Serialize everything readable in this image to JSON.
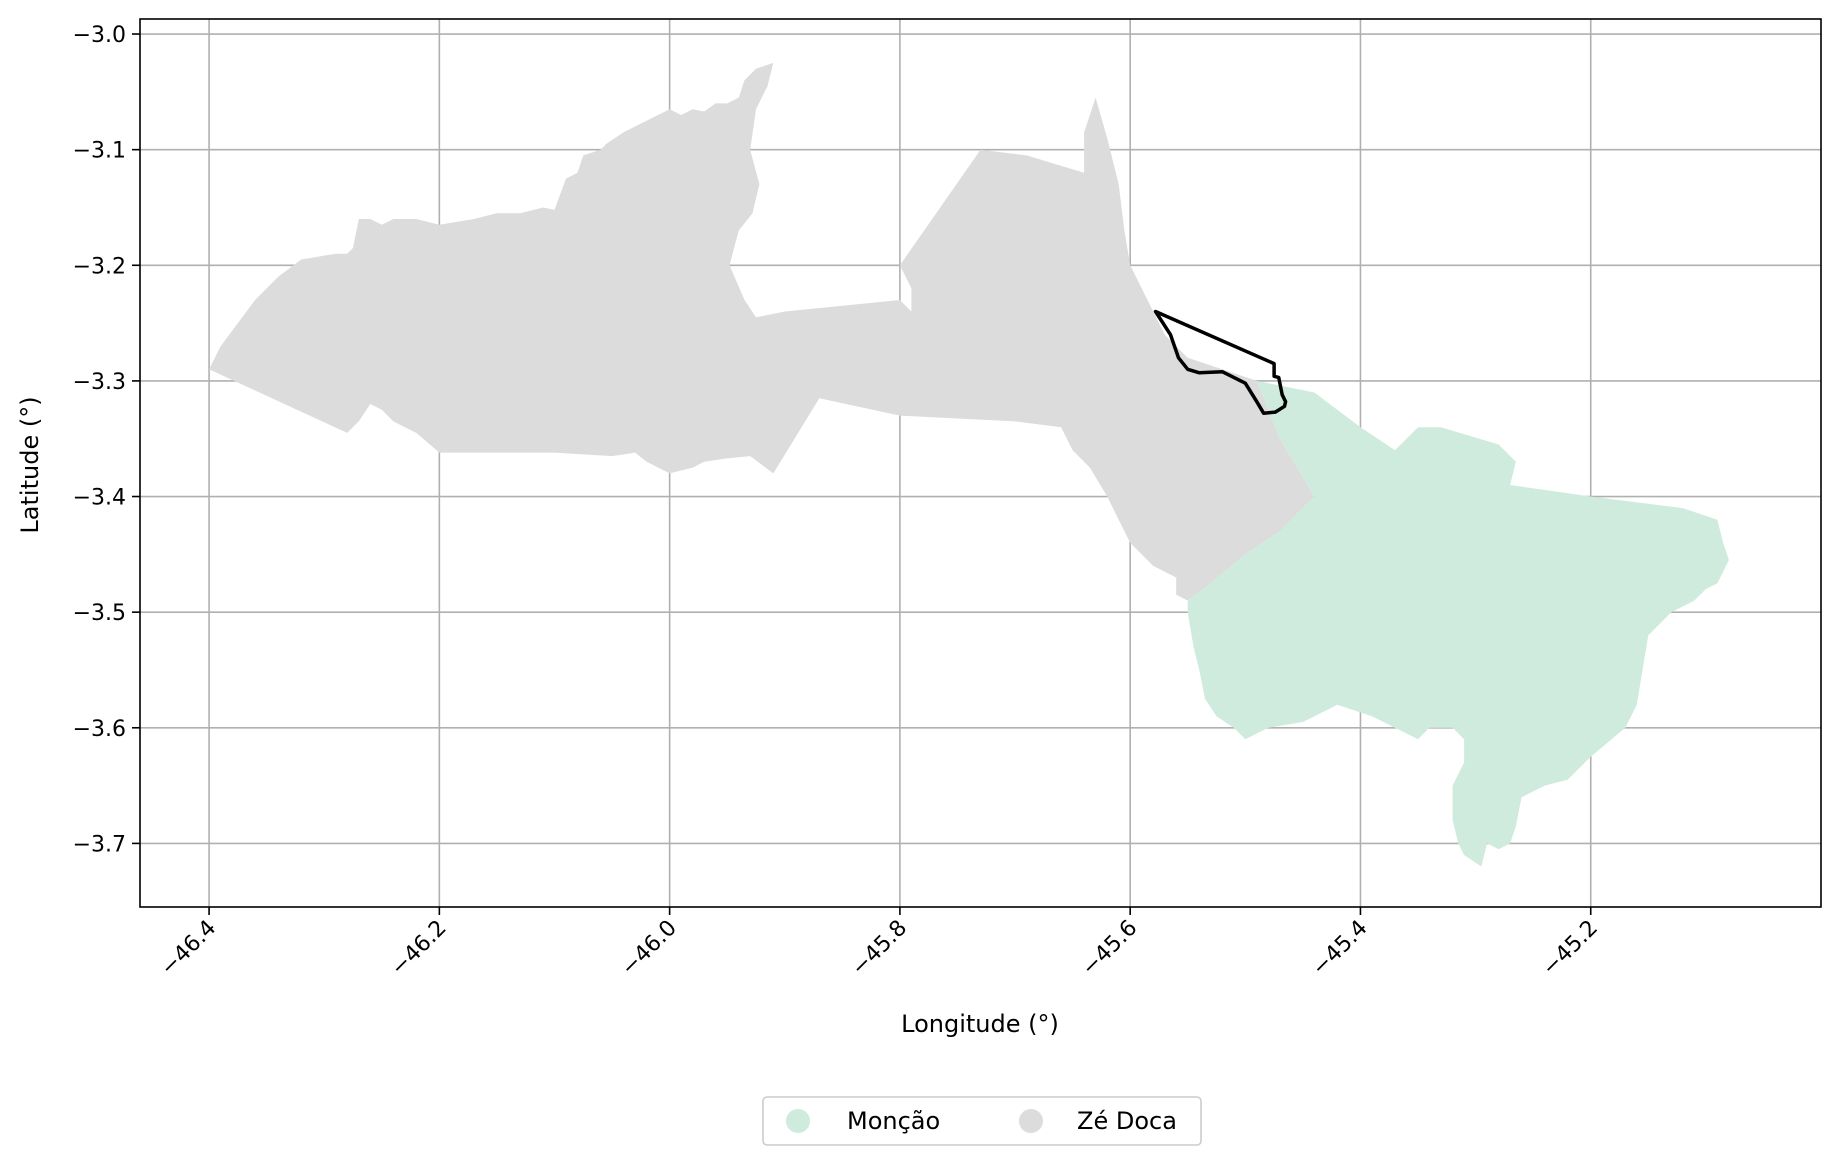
{
  "map": {
    "xlabel": "Longitude (°)",
    "ylabel": "Latitude (°)",
    "xlim": [
      -46.46,
      -45.0
    ],
    "ylim": [
      -3.755,
      -2.987
    ],
    "x_ticks": [
      {
        "value": -46.4,
        "label": "−46.4"
      },
      {
        "value": -46.2,
        "label": "−46.2"
      },
      {
        "value": -46.0,
        "label": "−46.0"
      },
      {
        "value": -45.8,
        "label": "−45.8"
      },
      {
        "value": -45.6,
        "label": "−45.6"
      },
      {
        "value": -45.4,
        "label": "−45.4"
      },
      {
        "value": -45.2,
        "label": "−45.2"
      }
    ],
    "y_ticks": [
      {
        "value": -3.0,
        "label": "−3.0"
      },
      {
        "value": -3.1,
        "label": "−3.1"
      },
      {
        "value": -3.2,
        "label": "−3.2"
      },
      {
        "value": -3.3,
        "label": "−3.3"
      },
      {
        "value": -3.4,
        "label": "−3.4"
      },
      {
        "value": -3.5,
        "label": "−3.5"
      },
      {
        "value": -3.6,
        "label": "−3.6"
      },
      {
        "value": -3.7,
        "label": "−3.7"
      }
    ],
    "grid": true,
    "legend_position": "bottom-center",
    "regions": [
      {
        "name": "Zé Doca",
        "color": "#dcdcdc",
        "coords": [
          [
            -46.4,
            -3.29
          ],
          [
            -46.39,
            -3.27
          ],
          [
            -46.36,
            -3.23
          ],
          [
            -46.34,
            -3.21
          ],
          [
            -46.32,
            -3.195
          ],
          [
            -46.29,
            -3.19
          ],
          [
            -46.28,
            -3.19
          ],
          [
            -46.275,
            -3.185
          ],
          [
            -46.27,
            -3.16
          ],
          [
            -46.26,
            -3.16
          ],
          [
            -46.25,
            -3.165
          ],
          [
            -46.24,
            -3.16
          ],
          [
            -46.22,
            -3.16
          ],
          [
            -46.2,
            -3.165
          ],
          [
            -46.17,
            -3.16
          ],
          [
            -46.15,
            -3.155
          ],
          [
            -46.13,
            -3.155
          ],
          [
            -46.11,
            -3.15
          ],
          [
            -46.1,
            -3.152
          ],
          [
            -46.09,
            -3.125
          ],
          [
            -46.08,
            -3.12
          ],
          [
            -46.075,
            -3.105
          ],
          [
            -46.06,
            -3.1
          ],
          [
            -46.055,
            -3.095
          ],
          [
            -46.04,
            -3.085
          ],
          [
            -46.03,
            -3.08
          ],
          [
            -46.02,
            -3.075
          ],
          [
            -46.0,
            -3.065
          ],
          [
            -45.99,
            -3.07
          ],
          [
            -45.98,
            -3.065
          ],
          [
            -45.97,
            -3.067
          ],
          [
            -45.96,
            -3.06
          ],
          [
            -45.95,
            -3.06
          ],
          [
            -45.94,
            -3.055
          ],
          [
            -45.935,
            -3.04
          ],
          [
            -45.925,
            -3.03
          ],
          [
            -45.91,
            -3.025
          ],
          [
            -45.915,
            -3.045
          ],
          [
            -45.925,
            -3.065
          ],
          [
            -45.93,
            -3.1
          ],
          [
            -45.922,
            -3.13
          ],
          [
            -45.928,
            -3.155
          ],
          [
            -45.94,
            -3.17
          ],
          [
            -45.948,
            -3.2
          ],
          [
            -45.935,
            -3.23
          ],
          [
            -45.925,
            -3.245
          ],
          [
            -45.9,
            -3.24
          ],
          [
            -45.8,
            -3.23
          ],
          [
            -45.79,
            -3.24
          ],
          [
            -45.79,
            -3.22
          ],
          [
            -45.8,
            -3.2
          ],
          [
            -45.73,
            -3.1
          ],
          [
            -45.69,
            -3.105
          ],
          [
            -45.64,
            -3.12
          ],
          [
            -45.64,
            -3.085
          ],
          [
            -45.63,
            -3.055
          ],
          [
            -45.62,
            -3.09
          ],
          [
            -45.61,
            -3.13
          ],
          [
            -45.605,
            -3.17
          ],
          [
            -45.6,
            -3.2
          ],
          [
            -45.59,
            -3.22
          ],
          [
            -45.58,
            -3.24
          ],
          [
            -45.57,
            -3.26
          ],
          [
            -45.55,
            -3.28
          ],
          [
            -45.52,
            -3.29
          ],
          [
            -45.49,
            -3.3
          ],
          [
            -45.47,
            -3.35
          ],
          [
            -45.44,
            -3.4
          ],
          [
            -45.47,
            -3.43
          ],
          [
            -45.5,
            -3.45
          ],
          [
            -45.53,
            -3.475
          ],
          [
            -45.55,
            -3.49
          ],
          [
            -45.56,
            -3.485
          ],
          [
            -45.56,
            -3.47
          ],
          [
            -45.58,
            -3.46
          ],
          [
            -45.6,
            -3.44
          ],
          [
            -45.61,
            -3.42
          ],
          [
            -45.62,
            -3.4
          ],
          [
            -45.635,
            -3.375
          ],
          [
            -45.65,
            -3.36
          ],
          [
            -45.66,
            -3.34
          ],
          [
            -45.7,
            -3.335
          ],
          [
            -45.8,
            -3.33
          ],
          [
            -45.87,
            -3.315
          ],
          [
            -45.91,
            -3.38
          ],
          [
            -45.93,
            -3.365
          ],
          [
            -45.95,
            -3.367
          ],
          [
            -45.97,
            -3.37
          ],
          [
            -45.98,
            -3.375
          ],
          [
            -46.0,
            -3.38
          ],
          [
            -46.02,
            -3.37
          ],
          [
            -46.03,
            -3.362
          ],
          [
            -46.05,
            -3.365
          ],
          [
            -46.1,
            -3.362
          ],
          [
            -46.2,
            -3.362
          ],
          [
            -46.22,
            -3.345
          ],
          [
            -46.24,
            -3.335
          ],
          [
            -46.25,
            -3.325
          ],
          [
            -46.26,
            -3.32
          ],
          [
            -46.27,
            -3.335
          ],
          [
            -46.28,
            -3.345
          ]
        ]
      },
      {
        "name": "Monção",
        "color": "#cfebdd",
        "coords": [
          [
            -45.49,
            -3.3
          ],
          [
            -45.44,
            -3.31
          ],
          [
            -45.4,
            -3.34
          ],
          [
            -45.37,
            -3.36
          ],
          [
            -45.35,
            -3.34
          ],
          [
            -45.33,
            -3.34
          ],
          [
            -45.28,
            -3.355
          ],
          [
            -45.265,
            -3.37
          ],
          [
            -45.27,
            -3.39
          ],
          [
            -45.2,
            -3.4
          ],
          [
            -45.12,
            -3.41
          ],
          [
            -45.09,
            -3.42
          ],
          [
            -45.085,
            -3.44
          ],
          [
            -45.08,
            -3.455
          ],
          [
            -45.09,
            -3.475
          ],
          [
            -45.1,
            -3.48
          ],
          [
            -45.11,
            -3.49
          ],
          [
            -45.13,
            -3.5
          ],
          [
            -45.15,
            -3.52
          ],
          [
            -45.155,
            -3.55
          ],
          [
            -45.16,
            -3.58
          ],
          [
            -45.17,
            -3.6
          ],
          [
            -45.2,
            -3.625
          ],
          [
            -45.22,
            -3.645
          ],
          [
            -45.24,
            -3.65
          ],
          [
            -45.26,
            -3.66
          ],
          [
            -45.265,
            -3.685
          ],
          [
            -45.27,
            -3.7
          ],
          [
            -45.28,
            -3.705
          ],
          [
            -45.29,
            -3.7
          ],
          [
            -45.295,
            -3.72
          ],
          [
            -45.31,
            -3.71
          ],
          [
            -45.315,
            -3.7
          ],
          [
            -45.32,
            -3.68
          ],
          [
            -45.32,
            -3.65
          ],
          [
            -45.31,
            -3.63
          ],
          [
            -45.31,
            -3.61
          ],
          [
            -45.32,
            -3.6
          ],
          [
            -45.34,
            -3.6
          ],
          [
            -45.35,
            -3.61
          ],
          [
            -45.37,
            -3.6
          ],
          [
            -45.39,
            -3.59
          ],
          [
            -45.42,
            -3.58
          ],
          [
            -45.45,
            -3.595
          ],
          [
            -45.48,
            -3.6
          ],
          [
            -45.5,
            -3.61
          ],
          [
            -45.51,
            -3.6
          ],
          [
            -45.525,
            -3.59
          ],
          [
            -45.535,
            -3.575
          ],
          [
            -45.54,
            -3.55
          ],
          [
            -45.545,
            -3.53
          ],
          [
            -45.55,
            -3.5
          ],
          [
            -45.55,
            -3.49
          ],
          [
            -45.53,
            -3.475
          ],
          [
            -45.5,
            -3.45
          ],
          [
            -45.47,
            -3.43
          ],
          [
            -45.44,
            -3.4
          ],
          [
            -45.47,
            -3.35
          ]
        ]
      }
    ],
    "highlight": {
      "color": "#000000",
      "coords": [
        [
          -45.578,
          -3.24
        ],
        [
          -45.475,
          -3.285
        ],
        [
          -45.475,
          -3.296
        ],
        [
          -45.471,
          -3.297
        ],
        [
          -45.468,
          -3.312
        ],
        [
          -45.465,
          -3.318
        ],
        [
          -45.466,
          -3.322
        ],
        [
          -45.474,
          -3.327
        ],
        [
          -45.484,
          -3.328
        ],
        [
          -45.49,
          -3.318
        ],
        [
          -45.5,
          -3.302
        ],
        [
          -45.52,
          -3.292
        ],
        [
          -45.54,
          -3.293
        ],
        [
          -45.55,
          -3.29
        ],
        [
          -45.558,
          -3.28
        ],
        [
          -45.565,
          -3.26
        ]
      ]
    }
  },
  "legend": {
    "items": [
      {
        "label": "Monção",
        "color": "#cfebdd"
      },
      {
        "label": "Zé Doca",
        "color": "#dcdcdc"
      }
    ]
  }
}
